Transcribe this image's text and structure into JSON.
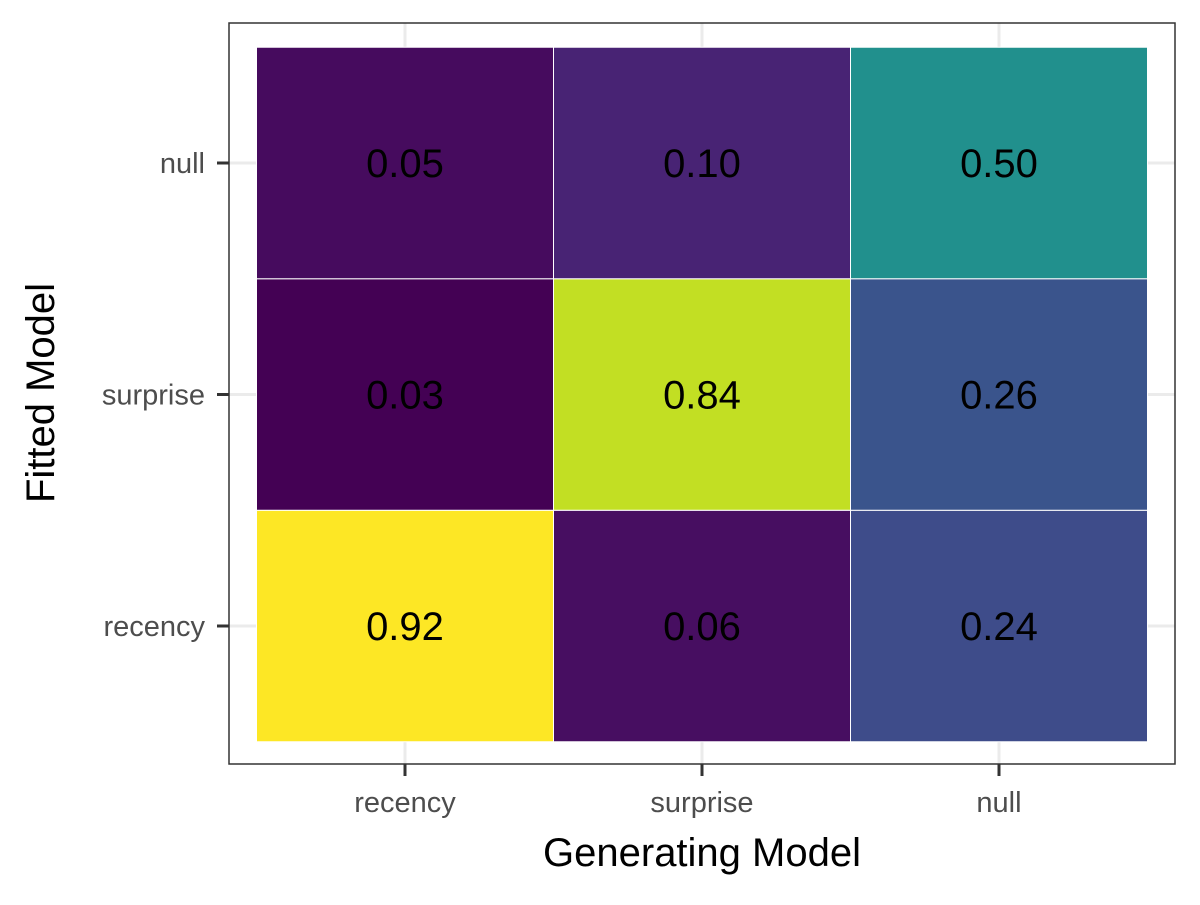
{
  "chart_data": {
    "type": "heatmap",
    "xlabel": "Generating Model",
    "ylabel": "Fitted Model",
    "x_categories": [
      "recency",
      "surprise",
      "null"
    ],
    "y_categories": [
      "recency",
      "surprise",
      "null"
    ],
    "values": [
      {
        "x": "recency",
        "y": "recency",
        "value": 0.92,
        "label": "0.92",
        "color": "#fde725"
      },
      {
        "x": "surprise",
        "y": "recency",
        "value": 0.06,
        "label": "0.06",
        "color": "#470e61"
      },
      {
        "x": "null",
        "y": "recency",
        "value": 0.24,
        "label": "0.24",
        "color": "#3e4c8a"
      },
      {
        "x": "recency",
        "y": "surprise",
        "value": 0.03,
        "label": "0.03",
        "color": "#440154"
      },
      {
        "x": "surprise",
        "y": "surprise",
        "value": 0.84,
        "label": "0.84",
        "color": "#c2df23"
      },
      {
        "x": "null",
        "y": "surprise",
        "value": 0.26,
        "label": "0.26",
        "color": "#3a548c"
      },
      {
        "x": "recency",
        "y": "null",
        "value": 0.05,
        "label": "0.05",
        "color": "#460b5e"
      },
      {
        "x": "surprise",
        "y": "null",
        "value": 0.1,
        "label": "0.10",
        "color": "#482374"
      },
      {
        "x": "null",
        "y": "null",
        "value": 0.5,
        "label": "0.50",
        "color": "#21908d"
      }
    ],
    "color_scale": "viridis",
    "grid": true,
    "legend": "none"
  }
}
